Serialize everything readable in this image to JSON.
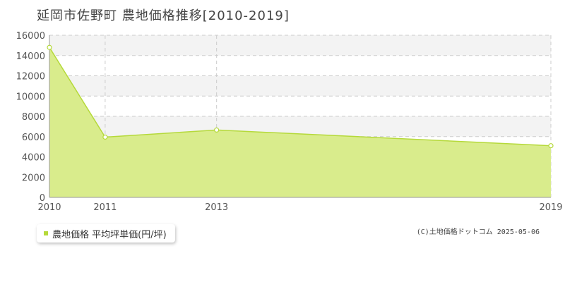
{
  "chart_data": {
    "type": "area",
    "title": "延岡市佐野町 農地価格推移[2010-2019]",
    "x": [
      "2010",
      "2011",
      "2013",
      "2019"
    ],
    "x_numeric": [
      2010,
      2011,
      2013,
      2019
    ],
    "series": [
      {
        "name": "農地価格 平均坪単価(円/坪)",
        "values": [
          14800,
          5950,
          6650,
          5100
        ]
      }
    ],
    "ylim": [
      0,
      16000
    ],
    "yticks": [
      0,
      2000,
      4000,
      6000,
      8000,
      10000,
      12000,
      14000,
      16000
    ],
    "xlim": [
      2010,
      2019
    ],
    "grid": true,
    "legend_position": "bottom-left",
    "colors": {
      "fill": "#d9ec8c",
      "line": "#b5d93a",
      "marker_fill": "#ffffff",
      "band": "#f3f3f3",
      "grid": "#cccccc"
    }
  },
  "legend": {
    "label": "農地価格 平均坪単価(円/坪)"
  },
  "credit": "(C)土地価格ドットコム 2025-05-06"
}
